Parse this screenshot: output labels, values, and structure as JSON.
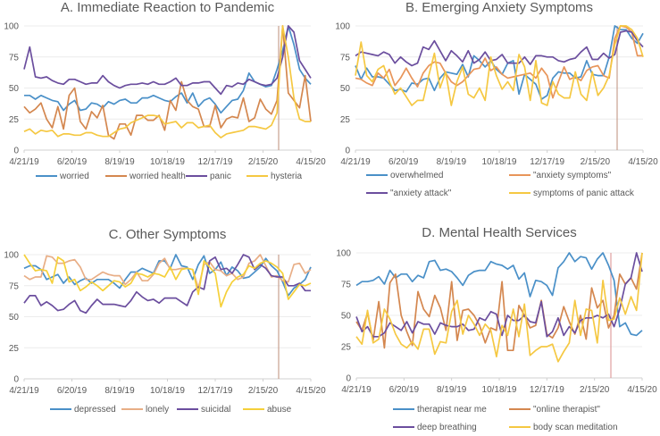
{
  "chart_data": [
    {
      "type": "line",
      "title": "A.  Immediate Reaction to Pandemic",
      "x_tick_labels": [
        "4/21/19",
        "6/20/19",
        "8/19/19",
        "10/18/19",
        "12/17/19",
        "2/15/20",
        "4/15/20"
      ],
      "y_tick_labels": [
        "0",
        "25",
        "50",
        "75",
        "100"
      ],
      "ylim": [
        0,
        100
      ],
      "grid": true,
      "legend_placement": "bottom",
      "vertical_marker_color": "#c9a090",
      "series": [
        {
          "name": "worried",
          "color": "#4a90c8",
          "values": [
            44,
            44,
            41,
            44,
            42,
            40,
            39,
            32,
            37,
            40,
            32,
            33,
            38,
            37,
            34,
            39,
            37,
            40,
            41,
            38,
            38,
            42,
            42,
            44,
            42,
            40,
            39,
            43,
            46,
            38,
            46,
            35,
            40,
            42,
            37,
            30,
            35,
            40,
            41,
            48,
            62,
            55,
            53,
            51,
            52,
            65,
            80,
            100,
            85,
            65,
            58,
            53
          ]
        },
        {
          "name": "worried health",
          "color": "#d4874f",
          "values": [
            35,
            30,
            33,
            38,
            25,
            18,
            35,
            17,
            44,
            50,
            23,
            17,
            31,
            26,
            36,
            12,
            9,
            21,
            21,
            12,
            28,
            28,
            24,
            24,
            28,
            16,
            40,
            32,
            55,
            40,
            35,
            33,
            19,
            19,
            36,
            18,
            25,
            27,
            26,
            42,
            23,
            26,
            41,
            33,
            29,
            40,
            100,
            46,
            40,
            34,
            60,
            23
          ]
        },
        {
          "name": "panic",
          "color": "#6b4e9e",
          "values": [
            65,
            83,
            59,
            58,
            59,
            56,
            54,
            53,
            57,
            57,
            55,
            53,
            54,
            54,
            60,
            55,
            52,
            50,
            52,
            53,
            53,
            54,
            53,
            55,
            53,
            53,
            55,
            58,
            52,
            52,
            54,
            54,
            55,
            55,
            50,
            45,
            52,
            51,
            54,
            53,
            57,
            55,
            53,
            52,
            53,
            58,
            75,
            100,
            95,
            72,
            65,
            58
          ]
        },
        {
          "name": "hysteria",
          "color": "#f5c842",
          "values": [
            15,
            17,
            13,
            16,
            15,
            16,
            11,
            13,
            13,
            12,
            12,
            14,
            14,
            12,
            11,
            11,
            14,
            17,
            18,
            22,
            24,
            26,
            28,
            28,
            27,
            21,
            22,
            23,
            18,
            22,
            22,
            18,
            19,
            20,
            14,
            10,
            13,
            14,
            15,
            16,
            19,
            19,
            18,
            17,
            20,
            30,
            100,
            75,
            42,
            25,
            23,
            23
          ]
        }
      ]
    },
    {
      "type": "line",
      "title": "B.  Emerging Anxiety Symptoms",
      "x_tick_labels": [
        "4/21/19",
        "6/20/19",
        "8/19/19",
        "10/18/19",
        "12/17/19",
        "2/15/20",
        "4/15/20"
      ],
      "y_tick_labels": [
        "0",
        "25",
        "50",
        "75",
        "100"
      ],
      "ylim": [
        0,
        100
      ],
      "grid": true,
      "legend_placement": "bottom",
      "vertical_marker_color": "#c9a090",
      "series": [
        {
          "name": "overwhelmed",
          "color": "#4a90c8",
          "values": [
            68,
            57,
            66,
            59,
            59,
            58,
            53,
            48,
            49,
            47,
            54,
            53,
            57,
            58,
            48,
            58,
            63,
            62,
            61,
            69,
            59,
            76,
            72,
            67,
            72,
            65,
            61,
            70,
            72,
            45,
            61,
            57,
            53,
            41,
            44,
            58,
            63,
            62,
            62,
            58,
            59,
            72,
            61,
            60,
            60,
            75,
            100,
            97,
            97,
            90,
            86,
            94
          ]
        },
        {
          "name": "\"anxiety symptoms\"",
          "color": "#e8955a",
          "values": [
            58,
            57,
            54,
            52,
            62,
            58,
            65,
            52,
            58,
            66,
            58,
            51,
            62,
            68,
            71,
            70,
            62,
            55,
            52,
            55,
            60,
            65,
            66,
            74,
            64,
            67,
            61,
            58,
            59,
            60,
            61,
            62,
            58,
            66,
            60,
            42,
            55,
            67,
            57,
            59,
            56,
            64,
            67,
            68,
            60,
            58,
            90,
            100,
            99,
            95,
            76,
            76
          ]
        },
        {
          "name": "\"anxiety attack\"",
          "color": "#6b4e9e",
          "values": [
            76,
            79,
            78,
            77,
            76,
            79,
            77,
            70,
            75,
            71,
            68,
            70,
            83,
            81,
            88,
            80,
            72,
            80,
            76,
            71,
            80,
            70,
            73,
            79,
            72,
            73,
            77,
            70,
            70,
            70,
            75,
            69,
            76,
            76,
            75,
            75,
            72,
            71,
            73,
            74,
            79,
            83,
            73,
            73,
            78,
            74,
            77,
            95,
            96,
            95,
            88,
            83
          ]
        },
        {
          "name": "symptoms of panic attack",
          "color": "#f5c842",
          "values": [
            60,
            87,
            60,
            55,
            65,
            68,
            55,
            45,
            50,
            43,
            36,
            40,
            40,
            60,
            78,
            50,
            63,
            36,
            55,
            67,
            45,
            42,
            50,
            40,
            75,
            60,
            49,
            55,
            48,
            77,
            67,
            40,
            72,
            38,
            36,
            55,
            45,
            42,
            42,
            63,
            45,
            40,
            63,
            44,
            50,
            60,
            85,
            100,
            100,
            97,
            90,
            75
          ]
        }
      ]
    },
    {
      "type": "line",
      "title": "C.  Other Symptoms",
      "x_tick_labels": [
        "4/21/19",
        "6/20/19",
        "8/19/19",
        "10/18/19",
        "12/17/19",
        "2/15/20",
        "4/15/20"
      ],
      "y_tick_labels": [
        "0",
        "25",
        "50",
        "75",
        "100"
      ],
      "ylim": [
        0,
        100
      ],
      "grid": true,
      "legend_placement": "bottom",
      "vertical_marker_color": "#c9a090",
      "series": [
        {
          "name": "depressed",
          "color": "#4a90c8",
          "values": [
            89,
            91,
            91,
            88,
            80,
            82,
            84,
            77,
            82,
            76,
            79,
            81,
            77,
            80,
            80,
            80,
            77,
            73,
            80,
            86,
            86,
            89,
            87,
            85,
            95,
            95,
            89,
            100,
            91,
            90,
            80,
            92,
            99,
            85,
            88,
            94,
            83,
            90,
            87,
            81,
            82,
            86,
            90,
            97,
            91,
            87,
            78,
            67,
            73,
            76,
            80,
            90
          ]
        },
        {
          "name": "lonely",
          "color": "#e8ae86",
          "values": [
            83,
            80,
            82,
            82,
            99,
            98,
            93,
            93,
            95,
            96,
            90,
            80,
            80,
            83,
            86,
            84,
            83,
            83,
            76,
            80,
            86,
            79,
            79,
            84,
            93,
            97,
            88,
            88,
            89,
            89,
            88,
            73,
            92,
            94,
            88,
            87,
            83,
            85,
            80,
            82,
            93,
            95,
            100,
            91,
            82,
            83,
            79,
            78,
            92,
            93,
            85,
            88
          ]
        },
        {
          "name": "suicidal",
          "color": "#6b4e9e",
          "values": [
            61,
            67,
            67,
            59,
            62,
            59,
            55,
            56,
            60,
            63,
            55,
            53,
            59,
            64,
            60,
            60,
            60,
            59,
            58,
            63,
            70,
            66,
            63,
            64,
            61,
            65,
            65,
            65,
            62,
            59,
            70,
            74,
            72,
            95,
            98,
            88,
            89,
            85,
            92,
            100,
            98,
            88,
            92,
            89,
            83,
            82,
            82,
            75,
            75,
            77,
            71,
            71
          ]
        },
        {
          "name": "abuse",
          "color": "#f5d03a",
          "values": [
            100,
            93,
            87,
            88,
            87,
            77,
            98,
            95,
            78,
            80,
            71,
            74,
            78,
            75,
            71,
            75,
            79,
            78,
            74,
            77,
            85,
            84,
            82,
            85,
            84,
            82,
            90,
            80,
            88,
            89,
            88,
            68,
            95,
            90,
            85,
            58,
            70,
            78,
            82,
            84,
            91,
            89,
            93,
            95,
            93,
            90,
            85,
            64,
            70,
            76,
            75,
            77
          ]
        }
      ]
    },
    {
      "type": "line",
      "title": "D.  Mental Health Services",
      "x_tick_labels": [
        "4/21/19",
        "6/20/19",
        "8/19/19",
        "10/18/19",
        "12/17/19",
        "2/15/20",
        "4/15/20"
      ],
      "y_tick_labels": [
        "0",
        "25",
        "50",
        "75",
        "100"
      ],
      "ylim": [
        0,
        100
      ],
      "grid": true,
      "legend_placement": "bottom",
      "vertical_marker_color": "#e0a0a0",
      "series": [
        {
          "name": "therapist near me",
          "color": "#4a90c8",
          "values": [
            74,
            77,
            77,
            78,
            81,
            75,
            86,
            80,
            83,
            83,
            77,
            82,
            80,
            93,
            94,
            86,
            87,
            85,
            80,
            74,
            82,
            85,
            86,
            86,
            93,
            91,
            90,
            87,
            90,
            79,
            84,
            65,
            78,
            77,
            74,
            66,
            88,
            93,
            100,
            93,
            97,
            96,
            87,
            95,
            100,
            90,
            78,
            41,
            44,
            35,
            34,
            38
          ]
        },
        {
          "name": "\"online therapist\"",
          "color": "#d4874f",
          "values": [
            45,
            38,
            52,
            30,
            61,
            24,
            76,
            83,
            50,
            37,
            26,
            69,
            55,
            49,
            66,
            56,
            38,
            77,
            30,
            54,
            55,
            50,
            42,
            28,
            40,
            38,
            77,
            22,
            22,
            58,
            50,
            40,
            42,
            62,
            35,
            32,
            40,
            57,
            45,
            35,
            50,
            31,
            72,
            56,
            62,
            40,
            50,
            83,
            75,
            80,
            71,
            100
          ]
        },
        {
          "name": "deep breathing",
          "color": "#6b4e9e",
          "values": [
            49,
            37,
            41,
            33,
            33,
            36,
            44,
            41,
            38,
            45,
            36,
            45,
            43,
            43,
            35,
            44,
            42,
            41,
            41,
            43,
            38,
            39,
            48,
            46,
            53,
            51,
            34,
            50,
            46,
            46,
            50,
            45,
            44,
            61,
            33,
            37,
            48,
            34,
            41,
            36,
            46,
            48,
            48,
            50,
            48,
            51,
            41,
            55,
            75,
            80,
            100,
            85
          ]
        },
        {
          "name": "body scan meditation",
          "color": "#f5c842",
          "values": [
            33,
            27,
            54,
            28,
            31,
            55,
            47,
            35,
            27,
            24,
            29,
            23,
            39,
            39,
            19,
            29,
            28,
            53,
            62,
            35,
            50,
            43,
            34,
            43,
            38,
            17,
            42,
            34,
            55,
            33,
            59,
            18,
            22,
            25,
            25,
            27,
            13,
            21,
            28,
            62,
            34,
            55,
            54,
            28,
            78,
            46,
            47,
            64,
            51,
            65,
            54,
            100
          ]
        }
      ]
    }
  ]
}
